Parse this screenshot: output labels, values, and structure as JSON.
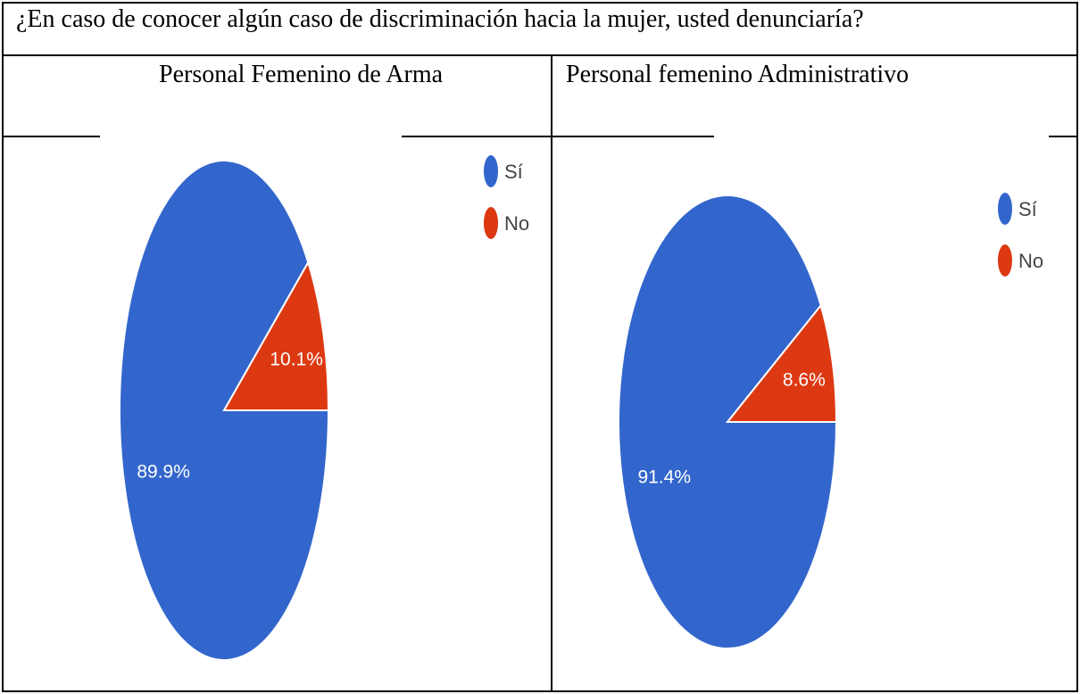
{
  "question": "¿En caso de conocer algún caso de discriminación hacia la mujer, usted denunciaría?",
  "colors": {
    "si": "#3366cc",
    "no": "#dc3912",
    "border": "#000000"
  },
  "chart_data": [
    {
      "type": "pie",
      "title": "Personal Femenino de Arma",
      "legend_position": "top-right",
      "slices": [
        {
          "label": "Sí",
          "value": 89.9,
          "display": "89.9%",
          "color": "#3366cc"
        },
        {
          "label": "No",
          "value": 10.1,
          "display": "10.1%",
          "color": "#dc3912"
        }
      ]
    },
    {
      "type": "pie",
      "title": "Personal femenino Administrativo",
      "legend_position": "top-right",
      "slices": [
        {
          "label": "Sí",
          "value": 91.4,
          "display": "91.4%",
          "color": "#3366cc"
        },
        {
          "label": "No",
          "value": 8.6,
          "display": "8.6%",
          "color": "#dc3912"
        }
      ]
    }
  ]
}
